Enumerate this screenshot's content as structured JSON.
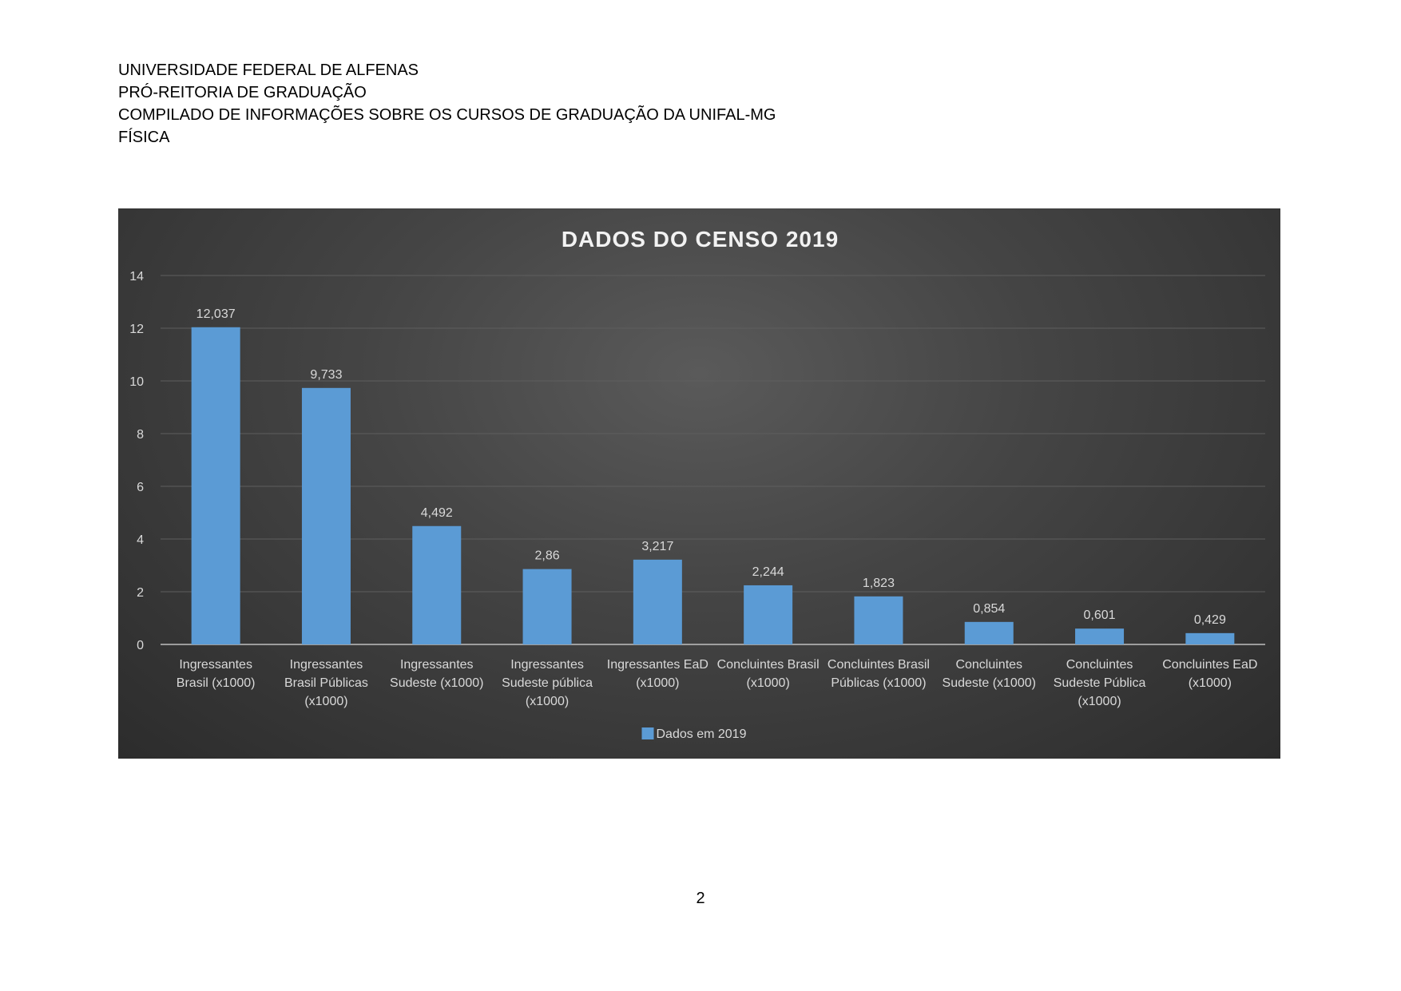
{
  "document": {
    "header_lines": [
      "UNIVERSIDADE FEDERAL DE ALFENAS",
      "PRÓ-REITORIA DE GRADUAÇÃO",
      "COMPILADO DE INFORMAÇÕES SOBRE OS CURSOS DE GRADUAÇÃO DA UNIFAL-MG",
      "FÍSICA"
    ],
    "page_number": "2"
  },
  "colors": {
    "bar": "#5b9bd5",
    "text_light": "#d9d9d9",
    "title": "#f2f2f2",
    "gridline": "#5e5e5e",
    "axis": "#bfbfbf"
  },
  "chart_data": {
    "type": "bar",
    "title": "DADOS DO CENSO 2019",
    "xlabel": "",
    "ylabel": "",
    "ylim": [
      0,
      14
    ],
    "yticks": [
      0,
      2,
      4,
      6,
      8,
      10,
      12,
      14
    ],
    "grid": true,
    "legend_position": "bottom",
    "categories": [
      [
        "Ingressantes",
        "Brasil (x1000)"
      ],
      [
        "Ingressantes",
        "Brasil Públicas",
        "(x1000)"
      ],
      [
        "Ingressantes",
        "Sudeste (x1000)"
      ],
      [
        "Ingressantes",
        "Sudeste pública",
        "(x1000)"
      ],
      [
        "Ingressantes EaD",
        "(x1000)"
      ],
      [
        "Concluintes Brasil",
        "(x1000)"
      ],
      [
        "Concluintes Brasil",
        "Públicas (x1000)"
      ],
      [
        "Concluintes",
        "Sudeste (x1000)"
      ],
      [
        "Concluintes",
        "Sudeste Pública",
        "(x1000)"
      ],
      [
        "Concluintes EaD",
        "(x1000)"
      ]
    ],
    "series": [
      {
        "name": "Dados em 2019",
        "values": [
          12.037,
          9.733,
          4.492,
          2.86,
          3.217,
          2.244,
          1.823,
          0.854,
          0.601,
          0.429
        ],
        "labels": [
          "12,037",
          "9,733",
          "4,492",
          "2,86",
          "3,217",
          "2,244",
          "1,823",
          "0,854",
          "0,601",
          "0,429"
        ]
      }
    ]
  }
}
